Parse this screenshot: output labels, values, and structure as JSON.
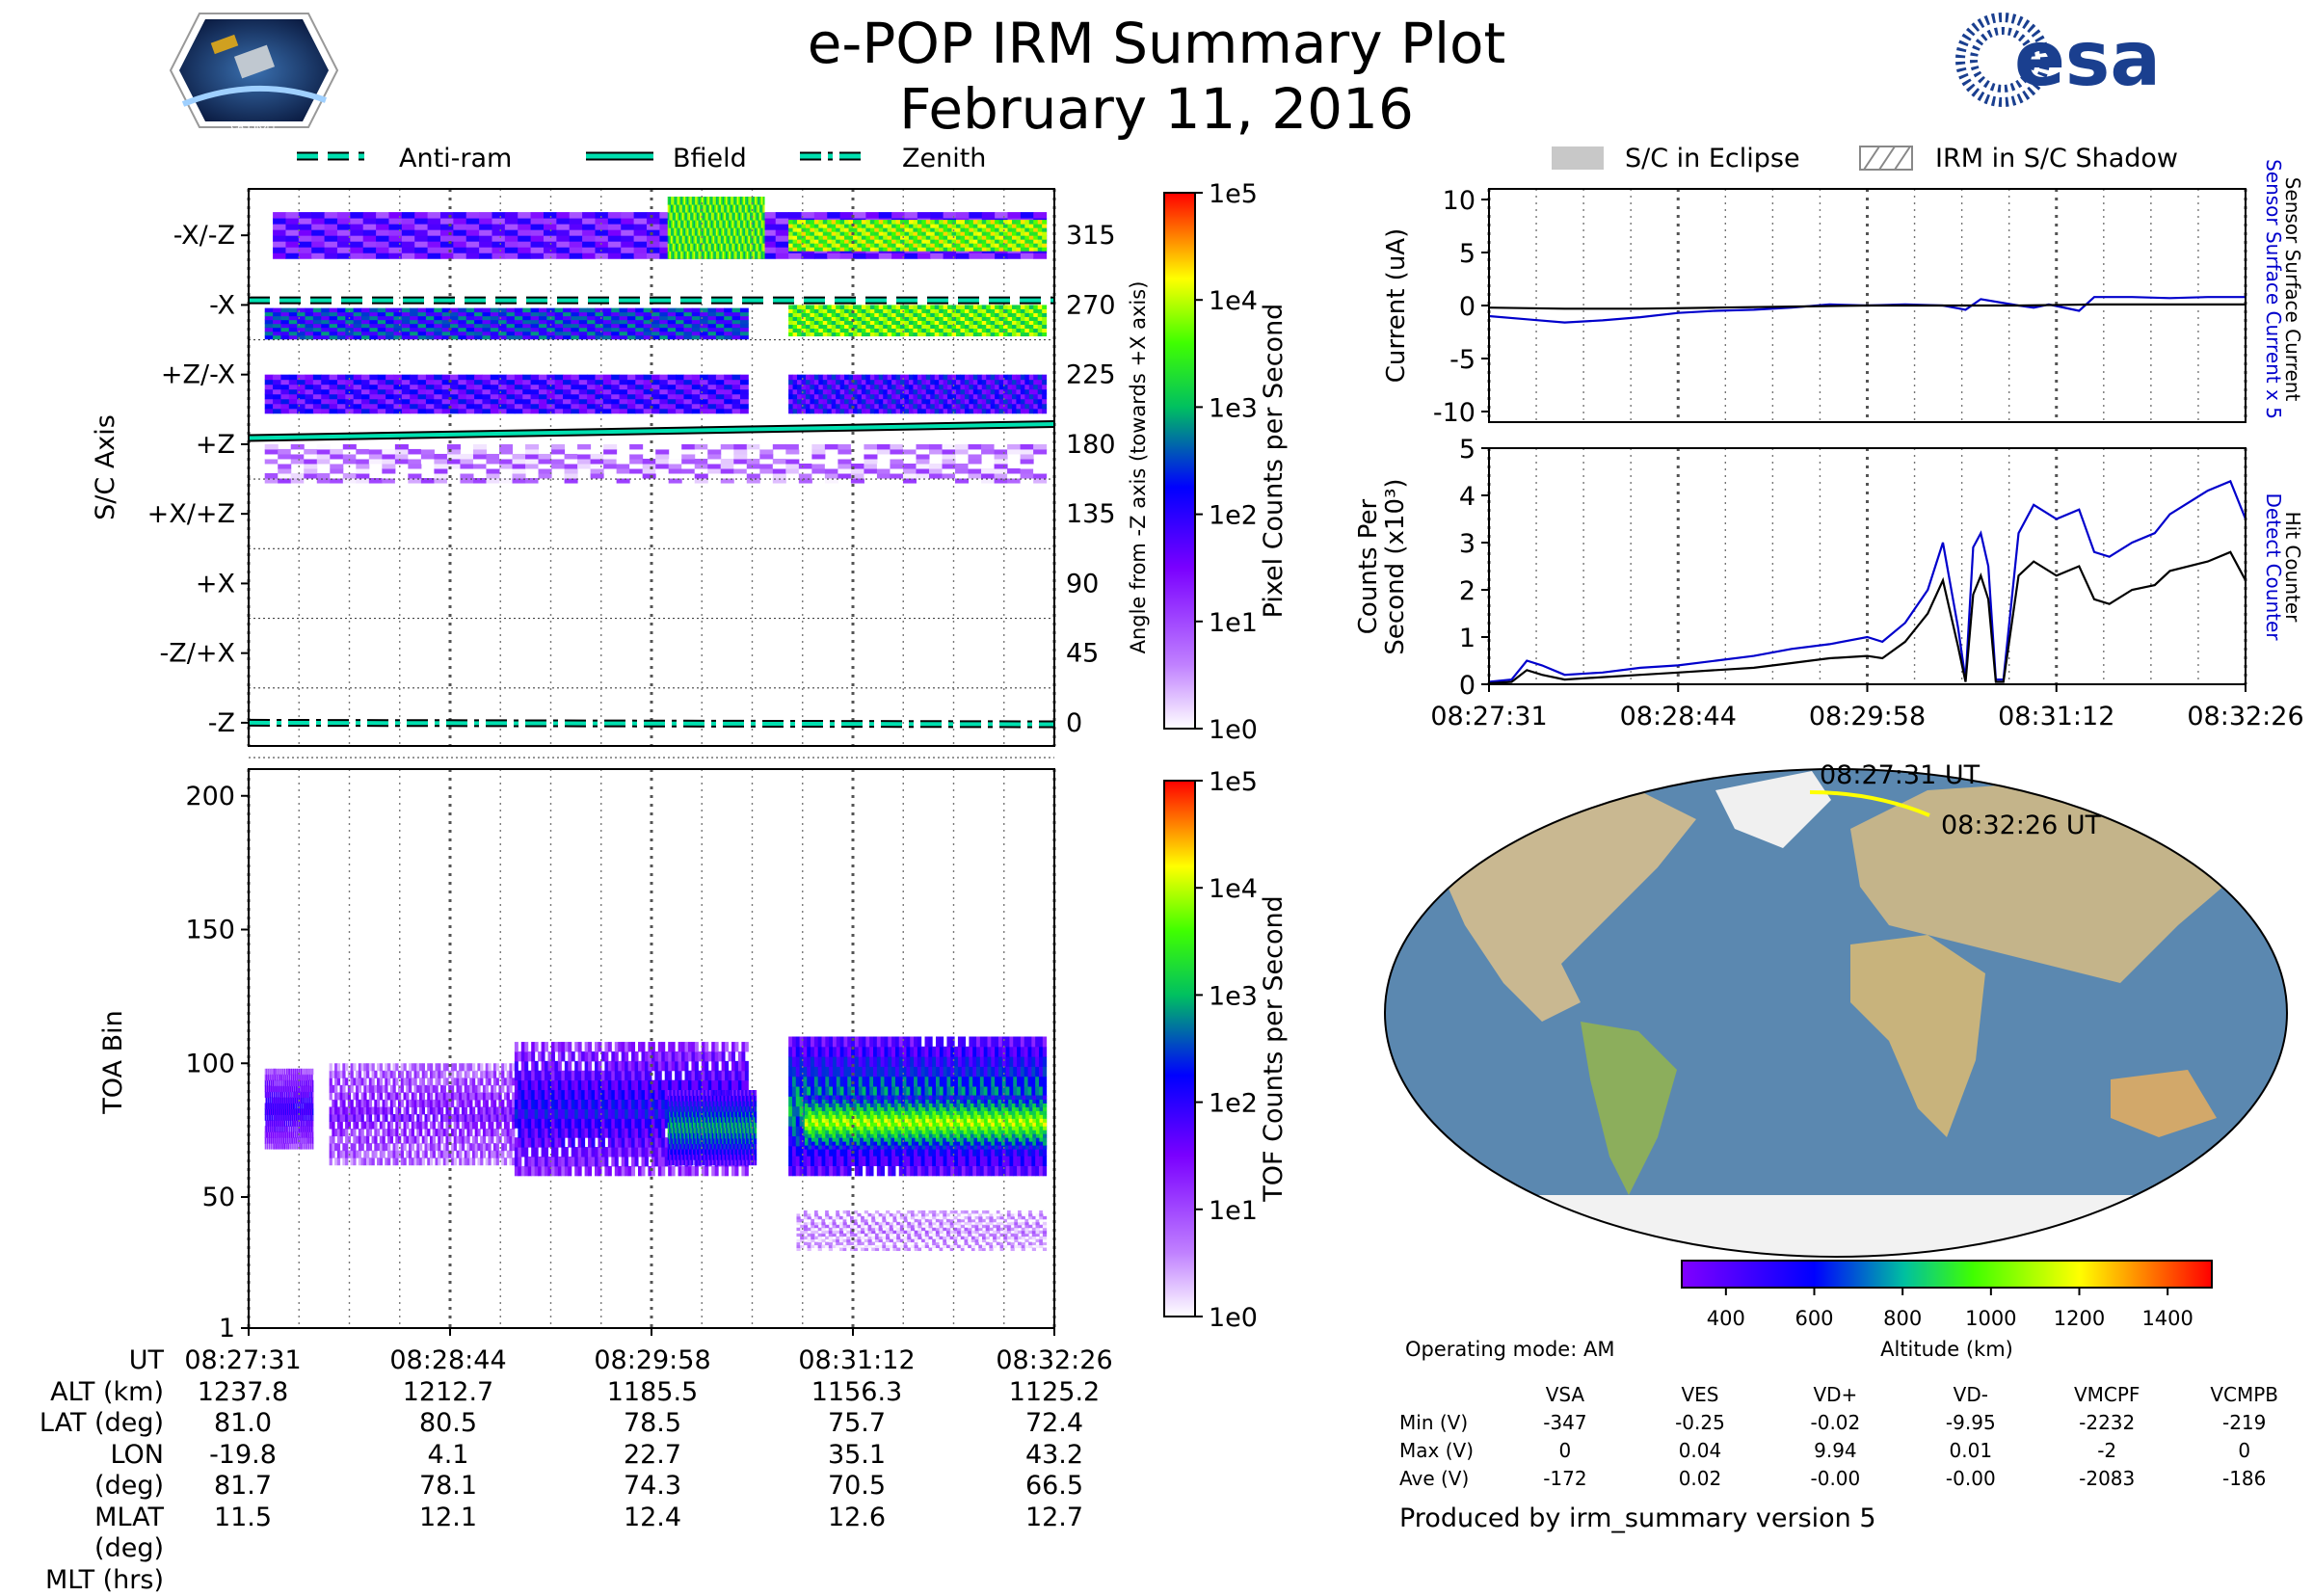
{
  "header": {
    "title": "e-POP IRM Summary Plot",
    "date": "February 11, 2016"
  },
  "logos": {
    "left_name": "CASSIOPE",
    "right_name": "esa"
  },
  "legend_top": {
    "items": [
      "Anti-ram",
      "Bfield",
      "Zenith"
    ]
  },
  "legend_right": {
    "items": [
      "S/C in Eclipse",
      "IRM in S/C Shadow"
    ]
  },
  "time_ticks": [
    "08:27:31",
    "08:28:44",
    "08:29:58",
    "08:31:12",
    "08:32:26"
  ],
  "colors": {
    "accent_teal": "#00e0b0",
    "sensor_blue": "#0000cc",
    "map_track": "#ffff00",
    "ocean": "#5b88b0"
  },
  "chart_data": [
    {
      "type": "heatmap",
      "name": "sc-axis-spectrogram",
      "ylabel": "S/C Axis",
      "ylabel_right": "Angle from -Z axis (towards +X axis)",
      "yticks_left": [
        "-X/-Z",
        "-X",
        "+Z/-X",
        "+Z",
        "+X/+Z",
        "+X",
        "-Z/+X",
        "-Z"
      ],
      "yticks_right": [
        "315",
        "270",
        "225",
        "180",
        "135",
        "90",
        "45",
        "0"
      ],
      "ylim": [
        -15,
        345
      ],
      "colorbar": {
        "label": "Pixel Counts per Second",
        "ticks": [
          "1e5",
          "1e4",
          "1e3",
          "1e2",
          "1e1",
          "1e0"
        ],
        "scale": "log"
      },
      "lines": [
        {
          "name": "Anti-ram",
          "style": "dashed",
          "angle_start": 273,
          "angle_end": 273
        },
        {
          "name": "Bfield",
          "style": "solid",
          "angle_start": 184,
          "angle_end": 193
        },
        {
          "name": "Zenith",
          "style": "dashdot",
          "angle_start": 0,
          "angle_end": -1
        }
      ],
      "segments": [
        {
          "t0": 0.03,
          "t1": 0.99,
          "a0": 300,
          "a1": 330,
          "level": 0.3
        },
        {
          "t0": 0.52,
          "t1": 0.64,
          "a0": 300,
          "a1": 340,
          "level": 0.7
        },
        {
          "t0": 0.67,
          "t1": 0.99,
          "a0": 305,
          "a1": 325,
          "level": 0.75
        },
        {
          "t0": 0.02,
          "t1": 0.62,
          "a0": 248,
          "a1": 268,
          "level": 0.45
        },
        {
          "t0": 0.67,
          "t1": 0.99,
          "a0": 250,
          "a1": 270,
          "level": 0.72
        },
        {
          "t0": 0.02,
          "t1": 0.62,
          "a0": 200,
          "a1": 225,
          "level": 0.35
        },
        {
          "t0": 0.67,
          "t1": 0.99,
          "a0": 200,
          "a1": 225,
          "level": 0.38
        },
        {
          "t0": 0.02,
          "t1": 0.99,
          "a0": 155,
          "a1": 180,
          "level": 0.1
        }
      ]
    },
    {
      "type": "heatmap",
      "name": "toa-spectrogram",
      "ylabel": "TOA Bin",
      "yticks": [
        1,
        50,
        100,
        150,
        200
      ],
      "ylim": [
        1,
        210
      ],
      "colorbar": {
        "label": "TOF Counts per Second",
        "ticks": [
          "1e5",
          "1e4",
          "1e3",
          "1e2",
          "1e1",
          "1e0"
        ],
        "scale": "log"
      },
      "segments": [
        {
          "t0": 0.02,
          "t1": 0.08,
          "b0": 68,
          "b1": 98,
          "level": 0.35
        },
        {
          "t0": 0.1,
          "t1": 0.33,
          "b0": 62,
          "b1": 100,
          "level": 0.25
        },
        {
          "t0": 0.33,
          "t1": 0.62,
          "b0": 58,
          "b1": 108,
          "level": 0.4
        },
        {
          "t0": 0.52,
          "t1": 0.63,
          "b0": 62,
          "b1": 90,
          "level": 0.55
        },
        {
          "t0": 0.67,
          "t1": 0.99,
          "b0": 58,
          "b1": 110,
          "level": 0.55
        },
        {
          "t0": 0.69,
          "t1": 0.99,
          "b0": 68,
          "b1": 88,
          "level": 0.75
        },
        {
          "t0": 0.68,
          "t1": 0.99,
          "b0": 30,
          "b1": 45,
          "level": 0.1
        }
      ]
    },
    {
      "type": "line",
      "name": "sensor-current",
      "ylabel": "Current (uA)",
      "ylabel_right": [
        "Sensor Surface Current x 5",
        "Sensor Surface Current"
      ],
      "ylim": [
        -11,
        11
      ],
      "yticks": [
        10,
        5,
        0,
        -5,
        -10
      ],
      "series": [
        {
          "name": "Sensor Surface Current x 5",
          "color": "#0000cc",
          "x": [
            0,
            0.05,
            0.1,
            0.15,
            0.2,
            0.25,
            0.3,
            0.35,
            0.4,
            0.45,
            0.5,
            0.55,
            0.6,
            0.63,
            0.65,
            0.7,
            0.72,
            0.74,
            0.78,
            0.8,
            0.85,
            0.9,
            0.95,
            1.0
          ],
          "y": [
            -1,
            -1.3,
            -1.6,
            -1.4,
            -1.1,
            -0.7,
            -0.5,
            -0.4,
            -0.2,
            0.1,
            0,
            0.1,
            0,
            -0.4,
            0.6,
            0,
            -0.2,
            0.1,
            -0.5,
            0.8,
            0.8,
            0.7,
            0.8,
            0.8
          ]
        },
        {
          "name": "Sensor Surface Current",
          "color": "#000000",
          "x": [
            0,
            0.1,
            0.2,
            0.3,
            0.4,
            0.5,
            0.6,
            0.7,
            0.8,
            0.9,
            1.0
          ],
          "y": [
            -0.2,
            -0.3,
            -0.3,
            -0.2,
            -0.1,
            0,
            0,
            0,
            0.1,
            0.1,
            0.1
          ]
        }
      ]
    },
    {
      "type": "line",
      "name": "counts-per-second",
      "ylabel": [
        "Counts Per",
        "Second (x10³)"
      ],
      "ylabel_right": [
        "Detect Counter",
        "Hit Counter"
      ],
      "ylim": [
        0,
        5
      ],
      "yticks": [
        0,
        1,
        2,
        3,
        4,
        5
      ],
      "xticks": [
        "08:27:31",
        "08:28:44",
        "08:29:58",
        "08:31:12",
        "08:32:26"
      ],
      "series": [
        {
          "name": "Detect Counter",
          "color": "#0000cc",
          "x": [
            0,
            0.03,
            0.05,
            0.07,
            0.1,
            0.15,
            0.2,
            0.25,
            0.3,
            0.35,
            0.4,
            0.45,
            0.5,
            0.52,
            0.55,
            0.58,
            0.6,
            0.62,
            0.63,
            0.64,
            0.65,
            0.66,
            0.67,
            0.68,
            0.7,
            0.72,
            0.75,
            0.78,
            0.8,
            0.82,
            0.85,
            0.88,
            0.9,
            0.95,
            0.98,
            1.0
          ],
          "y": [
            0.05,
            0.1,
            0.5,
            0.4,
            0.2,
            0.25,
            0.35,
            0.4,
            0.5,
            0.6,
            0.75,
            0.85,
            1.0,
            0.9,
            1.3,
            2.0,
            3.0,
            1.2,
            0.1,
            2.9,
            3.2,
            2.5,
            0.1,
            0.1,
            3.2,
            3.8,
            3.5,
            3.7,
            2.8,
            2.7,
            3.0,
            3.2,
            3.6,
            4.1,
            4.3,
            3.5
          ]
        },
        {
          "name": "Hit Counter",
          "color": "#000000",
          "x": [
            0,
            0.03,
            0.05,
            0.07,
            0.1,
            0.15,
            0.2,
            0.25,
            0.3,
            0.35,
            0.4,
            0.45,
            0.5,
            0.52,
            0.55,
            0.58,
            0.6,
            0.62,
            0.63,
            0.64,
            0.65,
            0.66,
            0.67,
            0.68,
            0.7,
            0.72,
            0.75,
            0.78,
            0.8,
            0.82,
            0.85,
            0.88,
            0.9,
            0.95,
            0.98,
            1.0
          ],
          "y": [
            0.02,
            0.05,
            0.3,
            0.2,
            0.1,
            0.15,
            0.2,
            0.25,
            0.3,
            0.35,
            0.45,
            0.55,
            0.6,
            0.55,
            0.9,
            1.5,
            2.2,
            0.8,
            0.05,
            1.9,
            2.3,
            1.8,
            0.05,
            0.05,
            2.3,
            2.6,
            2.3,
            2.5,
            1.8,
            1.7,
            2.0,
            2.1,
            2.4,
            2.6,
            2.8,
            2.2
          ]
        }
      ]
    },
    {
      "type": "scatter",
      "name": "orbit-map",
      "track_labels": [
        "08:27:31 UT",
        "08:32:26 UT"
      ],
      "colorbar": {
        "label": "Altitude (km)",
        "ticks": [
          "400",
          "600",
          "800",
          "1000",
          "1200",
          "1400"
        ],
        "range": [
          300,
          1500
        ]
      }
    }
  ],
  "ephemeris": {
    "rows": [
      {
        "label": "UT",
        "values": [
          "08:27:31",
          "08:28:44",
          "08:29:58",
          "08:31:12",
          "08:32:26"
        ]
      },
      {
        "label": "ALT (km)",
        "values": [
          "1237.8",
          "1212.7",
          "1185.5",
          "1156.3",
          "1125.2"
        ]
      },
      {
        "label": "LAT (deg)",
        "values": [
          "81.0",
          "80.5",
          "78.5",
          "75.7",
          "72.4"
        ]
      },
      {
        "label": "LON (deg)",
        "values": [
          "-19.8",
          "4.1",
          "22.7",
          "35.1",
          "43.2"
        ]
      },
      {
        "label": "MLAT (deg)",
        "values": [
          "81.7",
          "78.1",
          "74.3",
          "70.5",
          "66.5"
        ]
      },
      {
        "label": "MLT (hrs)",
        "values": [
          "11.5",
          "12.1",
          "12.4",
          "12.6",
          "12.7"
        ]
      }
    ]
  },
  "status": {
    "operating_mode": "Operating mode: AM",
    "voltage_headers": [
      "VSA",
      "VES",
      "VD+",
      "VD-",
      "VMCPF",
      "VCMPB"
    ],
    "voltage_rows": [
      {
        "label": "Min (V)",
        "values": [
          "-347",
          "-0.25",
          "-0.02",
          "-9.95",
          "-2232",
          "-219"
        ]
      },
      {
        "label": "Max (V)",
        "values": [
          "0",
          "0.04",
          "9.94",
          "0.01",
          "-2",
          "0"
        ]
      },
      {
        "label": "Ave (V)",
        "values": [
          "-172",
          "0.02",
          "-0.00",
          "-0.00",
          "-2083",
          "-186"
        ]
      }
    ],
    "produced_by": "Produced by irm_summary version 5"
  }
}
